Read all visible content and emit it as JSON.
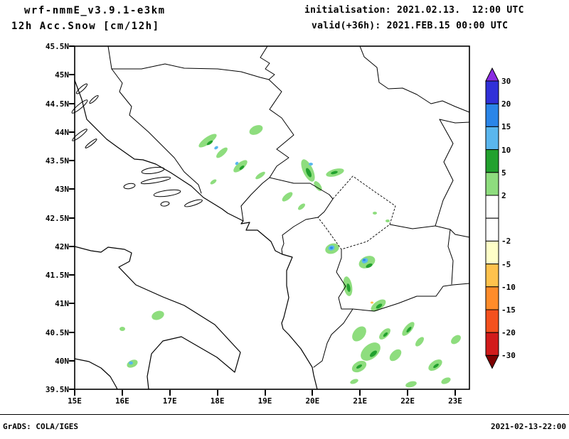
{
  "header": {
    "model": "wrf-nmmE_v3.9.1-e3km",
    "product": "12h Acc.Snow [cm/12h]",
    "initialisation": "initialisation: 2021.02.13.  12:00 UTC",
    "valid": "valid(+36h): 2021.FEB.15 00:00 UTC"
  },
  "footer": {
    "left": "GrADS: COLA/IGES",
    "right": "2021-02-13-22:00"
  },
  "chart_data": {
    "type": "heatmap",
    "title": "12h Acc.Snow [cm/12h]",
    "model": "wrf-nmmE_v3.9.1-e3km",
    "init_time": "2021.02.13. 12:00 UTC",
    "valid_time": "2021.FEB.15 00:00 UTC (+36h)",
    "units": "cm/12h",
    "grid": false,
    "lon_ticks": [
      "15E",
      "16E",
      "17E",
      "18E",
      "19E",
      "20E",
      "21E",
      "22E",
      "23E"
    ],
    "lat_ticks": [
      "45.5N",
      "45N",
      "44.5N",
      "44N",
      "43.5N",
      "43N",
      "42.5N",
      "42N",
      "41.5N",
      "41N",
      "40.5N",
      "40N",
      "39.5N"
    ],
    "lon_range": [
      15,
      23.3
    ],
    "lat_range": [
      39.5,
      45.5
    ],
    "colorbar": {
      "position": "right",
      "tick_labels": [
        "30",
        "20",
        "15",
        "10",
        "5",
        "2",
        "-2",
        "-5",
        "-10",
        "-15",
        "-20",
        "-30"
      ],
      "segment_colors_top_to_bottom": [
        "#8a2be2",
        "#3030d8",
        "#2a85e8",
        "#5ab6ee",
        "#22a12e",
        "#8edd7e",
        "#ffffff",
        "#ffffff",
        "#ffffc8",
        "#ffc24d",
        "#ff8c2a",
        "#f4511e",
        "#d21b1b",
        "#7e0000"
      ]
    },
    "snow_cells": [
      {
        "lon": 17.8,
        "lat": 43.85,
        "band_cm": "5-10"
      },
      {
        "lon": 18.1,
        "lat": 43.65,
        "band_cm": "10-15"
      },
      {
        "lon": 18.5,
        "lat": 43.4,
        "band_cm": "5-10"
      },
      {
        "lon": 18.8,
        "lat": 44.05,
        "band_cm": "2-5"
      },
      {
        "lon": 19.9,
        "lat": 43.35,
        "band_cm": "10-15"
      },
      {
        "lon": 20.5,
        "lat": 43.3,
        "band_cm": "5-10"
      },
      {
        "lon": 19.5,
        "lat": 42.85,
        "band_cm": "2-5"
      },
      {
        "lon": 20.4,
        "lat": 41.95,
        "band_cm": "10-15"
      },
      {
        "lon": 21.15,
        "lat": 41.7,
        "band_cm": "10-15"
      },
      {
        "lon": 20.75,
        "lat": 41.3,
        "band_cm": "5-10"
      },
      {
        "lon": 21.4,
        "lat": 40.95,
        "band_cm": "5-10"
      },
      {
        "lon": 21.2,
        "lat": 40.1,
        "band_cm": "5-10"
      },
      {
        "lon": 22.0,
        "lat": 40.55,
        "band_cm": "5-10"
      },
      {
        "lon": 22.6,
        "lat": 39.9,
        "band_cm": "5-10"
      },
      {
        "lon": 16.75,
        "lat": 40.8,
        "band_cm": "2-5"
      },
      {
        "lon": 16.2,
        "lat": 39.95,
        "band_cm": "10-15"
      }
    ]
  }
}
